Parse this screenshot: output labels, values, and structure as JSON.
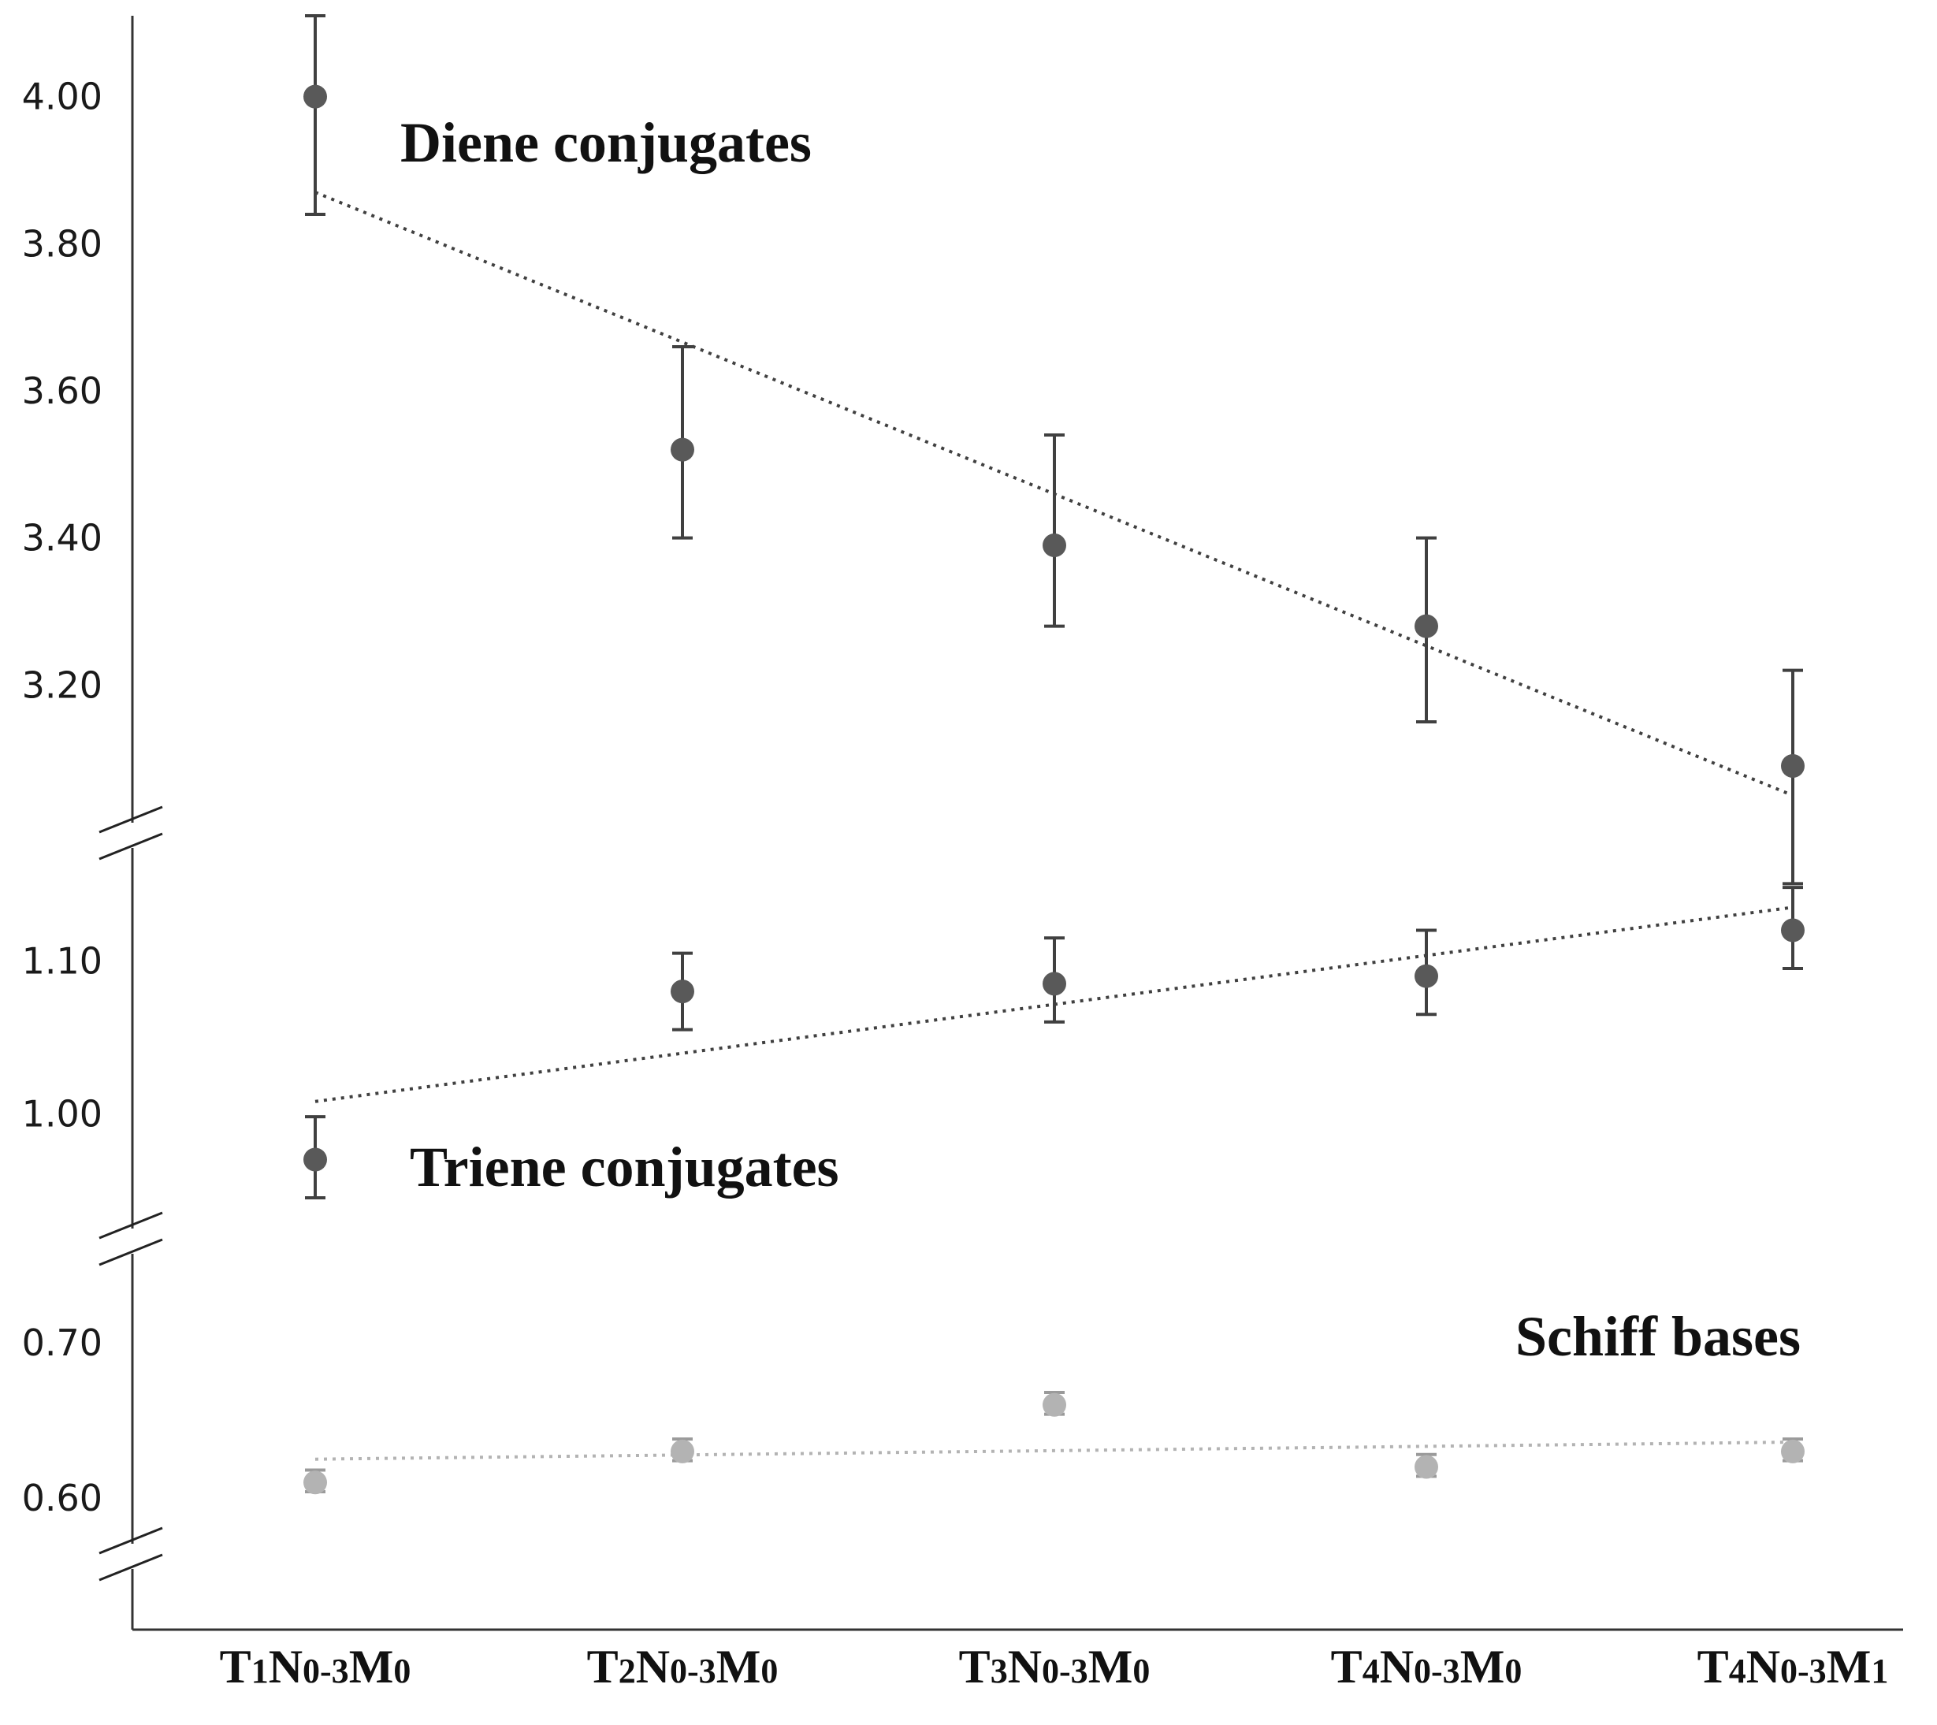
{
  "chart_data": {
    "type": "scatter",
    "categories": [
      "T1N0-3M0",
      "T2N0-3M0",
      "T3N0-3M0",
      "T4N0-3M0",
      "T4N0-3M1"
    ],
    "category_parts": [
      [
        {
          "t": "T",
          "s": false
        },
        {
          "t": "1",
          "s": true
        },
        {
          "t": "N",
          "s": false
        },
        {
          "t": "0-3",
          "s": true
        },
        {
          "t": "M",
          "s": false
        },
        {
          "t": "0",
          "s": true
        }
      ],
      [
        {
          "t": "T",
          "s": false
        },
        {
          "t": "2",
          "s": true
        },
        {
          "t": "N",
          "s": false
        },
        {
          "t": "0-3",
          "s": true
        },
        {
          "t": "M",
          "s": false
        },
        {
          "t": "0",
          "s": true
        }
      ],
      [
        {
          "t": "T",
          "s": false
        },
        {
          "t": "3",
          "s": true
        },
        {
          "t": "N",
          "s": false
        },
        {
          "t": "0-3",
          "s": true
        },
        {
          "t": "M",
          "s": false
        },
        {
          "t": "0",
          "s": true
        }
      ],
      [
        {
          "t": "T",
          "s": false
        },
        {
          "t": "4",
          "s": true
        },
        {
          "t": "N",
          "s": false
        },
        {
          "t": "0-3",
          "s": true
        },
        {
          "t": "M",
          "s": false
        },
        {
          "t": "0",
          "s": true
        }
      ],
      [
        {
          "t": "T",
          "s": false
        },
        {
          "t": "4",
          "s": true
        },
        {
          "t": "N",
          "s": false
        },
        {
          "t": "0-3",
          "s": true
        },
        {
          "t": "M",
          "s": false
        },
        {
          "t": "1",
          "s": true
        }
      ]
    ],
    "axis_breaks": true,
    "grid": false,
    "panels": [
      {
        "series_name": "Diene conjugates",
        "ylim": [
          3.06,
          4.11
        ],
        "yticks": [
          "4.00",
          "3.80",
          "3.60",
          "3.40",
          "3.20"
        ],
        "values": [
          4.0,
          3.52,
          3.39,
          3.28,
          3.09
        ],
        "err_low": [
          3.84,
          3.4,
          3.28,
          3.15,
          2.93
        ],
        "err_high": [
          4.11,
          3.66,
          3.54,
          3.4,
          3.22
        ],
        "trend": [
          3.87,
          3.05
        ],
        "color": "#595959",
        "trend_color": "#404040"
      },
      {
        "series_name": "Triene conjugates",
        "ylim": [
          0.945,
          1.145
        ],
        "yticks": [
          "1.10",
          "1.00"
        ],
        "values": [
          0.97,
          1.08,
          1.085,
          1.09,
          1.12
        ],
        "err_low": [
          0.945,
          1.055,
          1.06,
          1.065,
          1.095
        ],
        "err_high": [
          0.998,
          1.105,
          1.115,
          1.12,
          1.148
        ],
        "trend": [
          1.008,
          1.135
        ],
        "color": "#595959",
        "trend_color": "#404040"
      },
      {
        "series_name": "Schiff bases",
        "ylim": [
          0.57,
          0.7
        ],
        "yticks": [
          "0.70",
          "0.60"
        ],
        "values": [
          0.61,
          0.63,
          0.66,
          0.62,
          0.63
        ],
        "err_low": [
          0.604,
          0.624,
          0.654,
          0.614,
          0.624
        ],
        "err_high": [
          0.618,
          0.638,
          0.668,
          0.628,
          0.638
        ],
        "trend": [
          0.625,
          0.636
        ],
        "color": "#b3b3b3",
        "trend_color": "#b3b3b3"
      }
    ]
  }
}
